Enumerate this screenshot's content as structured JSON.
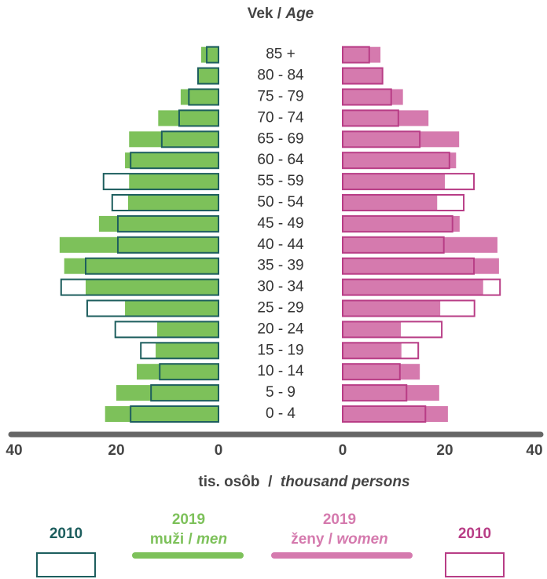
{
  "chart_data": {
    "type": "pyramid",
    "title": [
      "Vek / ",
      "Age"
    ],
    "x_label": [
      "tis. osôb  /  ",
      "thousand persons"
    ],
    "categories": [
      "0 - 4",
      "5 - 9",
      "10 - 14",
      "15 - 19",
      "20 - 24",
      "25 - 29",
      "30 - 34",
      "35 - 39",
      "40 - 44",
      "45 - 49",
      "50 - 54",
      "55 - 59",
      "60 - 64",
      "65 - 69",
      "70 - 74",
      "75 - 79",
      "80 - 84",
      "85 +"
    ],
    "xlim": [
      0,
      40
    ],
    "xticks": [
      0,
      20,
      40
    ],
    "series": [
      {
        "name": "2019",
        "label": [
          "muži / ",
          "men"
        ],
        "side": "left",
        "style": "filled",
        "color": "#7dc15a",
        "values": [
          22.2,
          20.0,
          16.0,
          12.3,
          12.0,
          18.3,
          26.0,
          30.2,
          31.1,
          23.4,
          17.7,
          17.5,
          18.3,
          17.5,
          11.8,
          7.4,
          4.0,
          3.4
        ]
      },
      {
        "name": "2010",
        "side": "left",
        "style": "outline",
        "color": "#1d5e5e",
        "values": [
          17.2,
          13.2,
          11.5,
          15.2,
          20.2,
          25.7,
          30.8,
          26.0,
          19.7,
          19.7,
          20.8,
          22.5,
          17.2,
          11.1,
          7.7,
          5.8,
          4.0,
          2.3
        ]
      },
      {
        "name": "2019",
        "label": [
          "ženy / ",
          "women"
        ],
        "side": "right",
        "style": "filled",
        "color": "#d57aae",
        "values": [
          20.6,
          18.9,
          15.1,
          11.5,
          11.4,
          19.1,
          27.5,
          30.6,
          30.3,
          22.9,
          18.5,
          20.0,
          22.2,
          22.8,
          16.8,
          11.8,
          7.8,
          7.4
        ]
      },
      {
        "name": "2010",
        "side": "right",
        "style": "outline",
        "color": "#b83d86",
        "values": [
          16.2,
          12.5,
          11.2,
          14.8,
          19.4,
          25.8,
          30.8,
          25.7,
          19.8,
          21.5,
          23.7,
          25.7,
          20.9,
          15.1,
          10.9,
          9.5,
          7.8,
          5.2
        ]
      }
    ]
  }
}
